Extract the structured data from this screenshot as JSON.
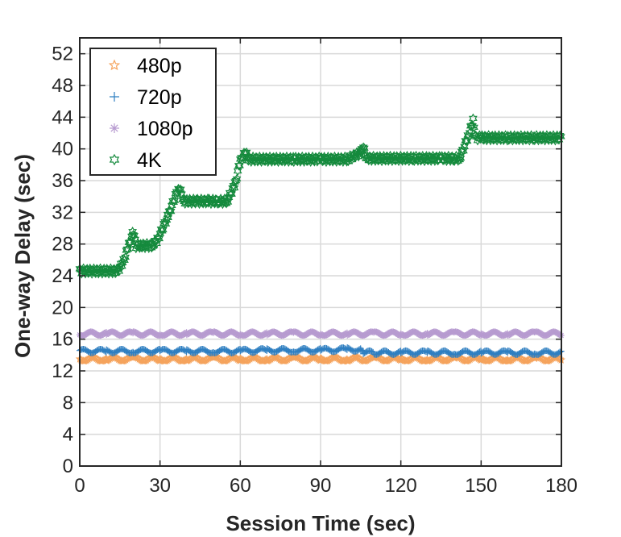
{
  "chart_data": {
    "type": "scatter",
    "xlabel": "Session Time (sec)",
    "ylabel": "One-way Delay (sec)",
    "xlim": [
      0,
      180
    ],
    "ylim": [
      0,
      54
    ],
    "xticks": [
      0,
      30,
      60,
      90,
      120,
      150,
      180
    ],
    "yticks": [
      0,
      4,
      8,
      12,
      16,
      20,
      24,
      28,
      32,
      36,
      40,
      44,
      48,
      52
    ],
    "grid": true,
    "legend_position": "top-left",
    "series": [
      {
        "name": "480p",
        "marker": "star",
        "color": "#f5a35c",
        "x": [
          0,
          10,
          20,
          30,
          40,
          50,
          60,
          70,
          80,
          90,
          100,
          110,
          120,
          130,
          140,
          150,
          160,
          170,
          180
        ],
        "y": [
          13.5,
          13.5,
          13.5,
          13.5,
          13.5,
          13.5,
          13.5,
          13.5,
          13.5,
          13.5,
          13.5,
          13.5,
          13.5,
          13.5,
          13.5,
          13.5,
          13.5,
          13.5,
          13.5
        ]
      },
      {
        "name": "720p",
        "marker": "plus",
        "color": "#2f7fc1",
        "x": [
          0,
          10,
          20,
          30,
          40,
          50,
          60,
          70,
          80,
          90,
          100,
          105,
          106,
          110,
          120,
          130,
          140,
          150,
          160,
          170,
          180
        ],
        "y": [
          14.5,
          14.5,
          14.5,
          14.5,
          14.5,
          14.5,
          14.5,
          14.6,
          14.6,
          14.6,
          14.7,
          14.7,
          14.3,
          14.3,
          14.3,
          14.3,
          14.3,
          14.3,
          14.3,
          14.3,
          14.3
        ]
      },
      {
        "name": "1080p",
        "marker": "asterisk",
        "color": "#b79bd0",
        "x": [
          0,
          10,
          20,
          30,
          40,
          50,
          60,
          70,
          80,
          90,
          100,
          110,
          120,
          130,
          140,
          150,
          160,
          170,
          180
        ],
        "y": [
          16.7,
          16.7,
          16.7,
          16.7,
          16.7,
          16.7,
          16.7,
          16.7,
          16.7,
          16.7,
          16.7,
          16.7,
          16.7,
          16.7,
          16.7,
          16.7,
          16.7,
          16.7,
          16.7
        ]
      },
      {
        "name": "4K",
        "marker": "hexagram",
        "color": "#158a3d",
        "x": [
          0,
          7,
          14,
          16,
          18,
          20,
          21,
          23,
          27,
          29,
          33,
          37,
          39,
          44,
          48,
          52,
          55,
          58,
          60,
          62,
          63,
          70,
          80,
          90,
          100,
          105,
          106,
          107,
          108,
          115,
          125,
          135,
          140,
          142,
          145,
          147,
          148,
          150,
          160,
          170,
          180
        ],
        "y": [
          24.6,
          24.6,
          24.6,
          25.5,
          27.5,
          29.5,
          27.8,
          27.8,
          27.8,
          28.5,
          31.5,
          35.2,
          33.4,
          33.4,
          33.4,
          33.4,
          33.4,
          35.5,
          38.5,
          39.5,
          38.7,
          38.7,
          38.7,
          38.7,
          38.7,
          39.5,
          40.2,
          38.9,
          38.8,
          38.8,
          38.8,
          38.8,
          38.8,
          38.8,
          41.5,
          43.5,
          41.4,
          41.4,
          41.4,
          41.4,
          41.4
        ]
      }
    ]
  }
}
